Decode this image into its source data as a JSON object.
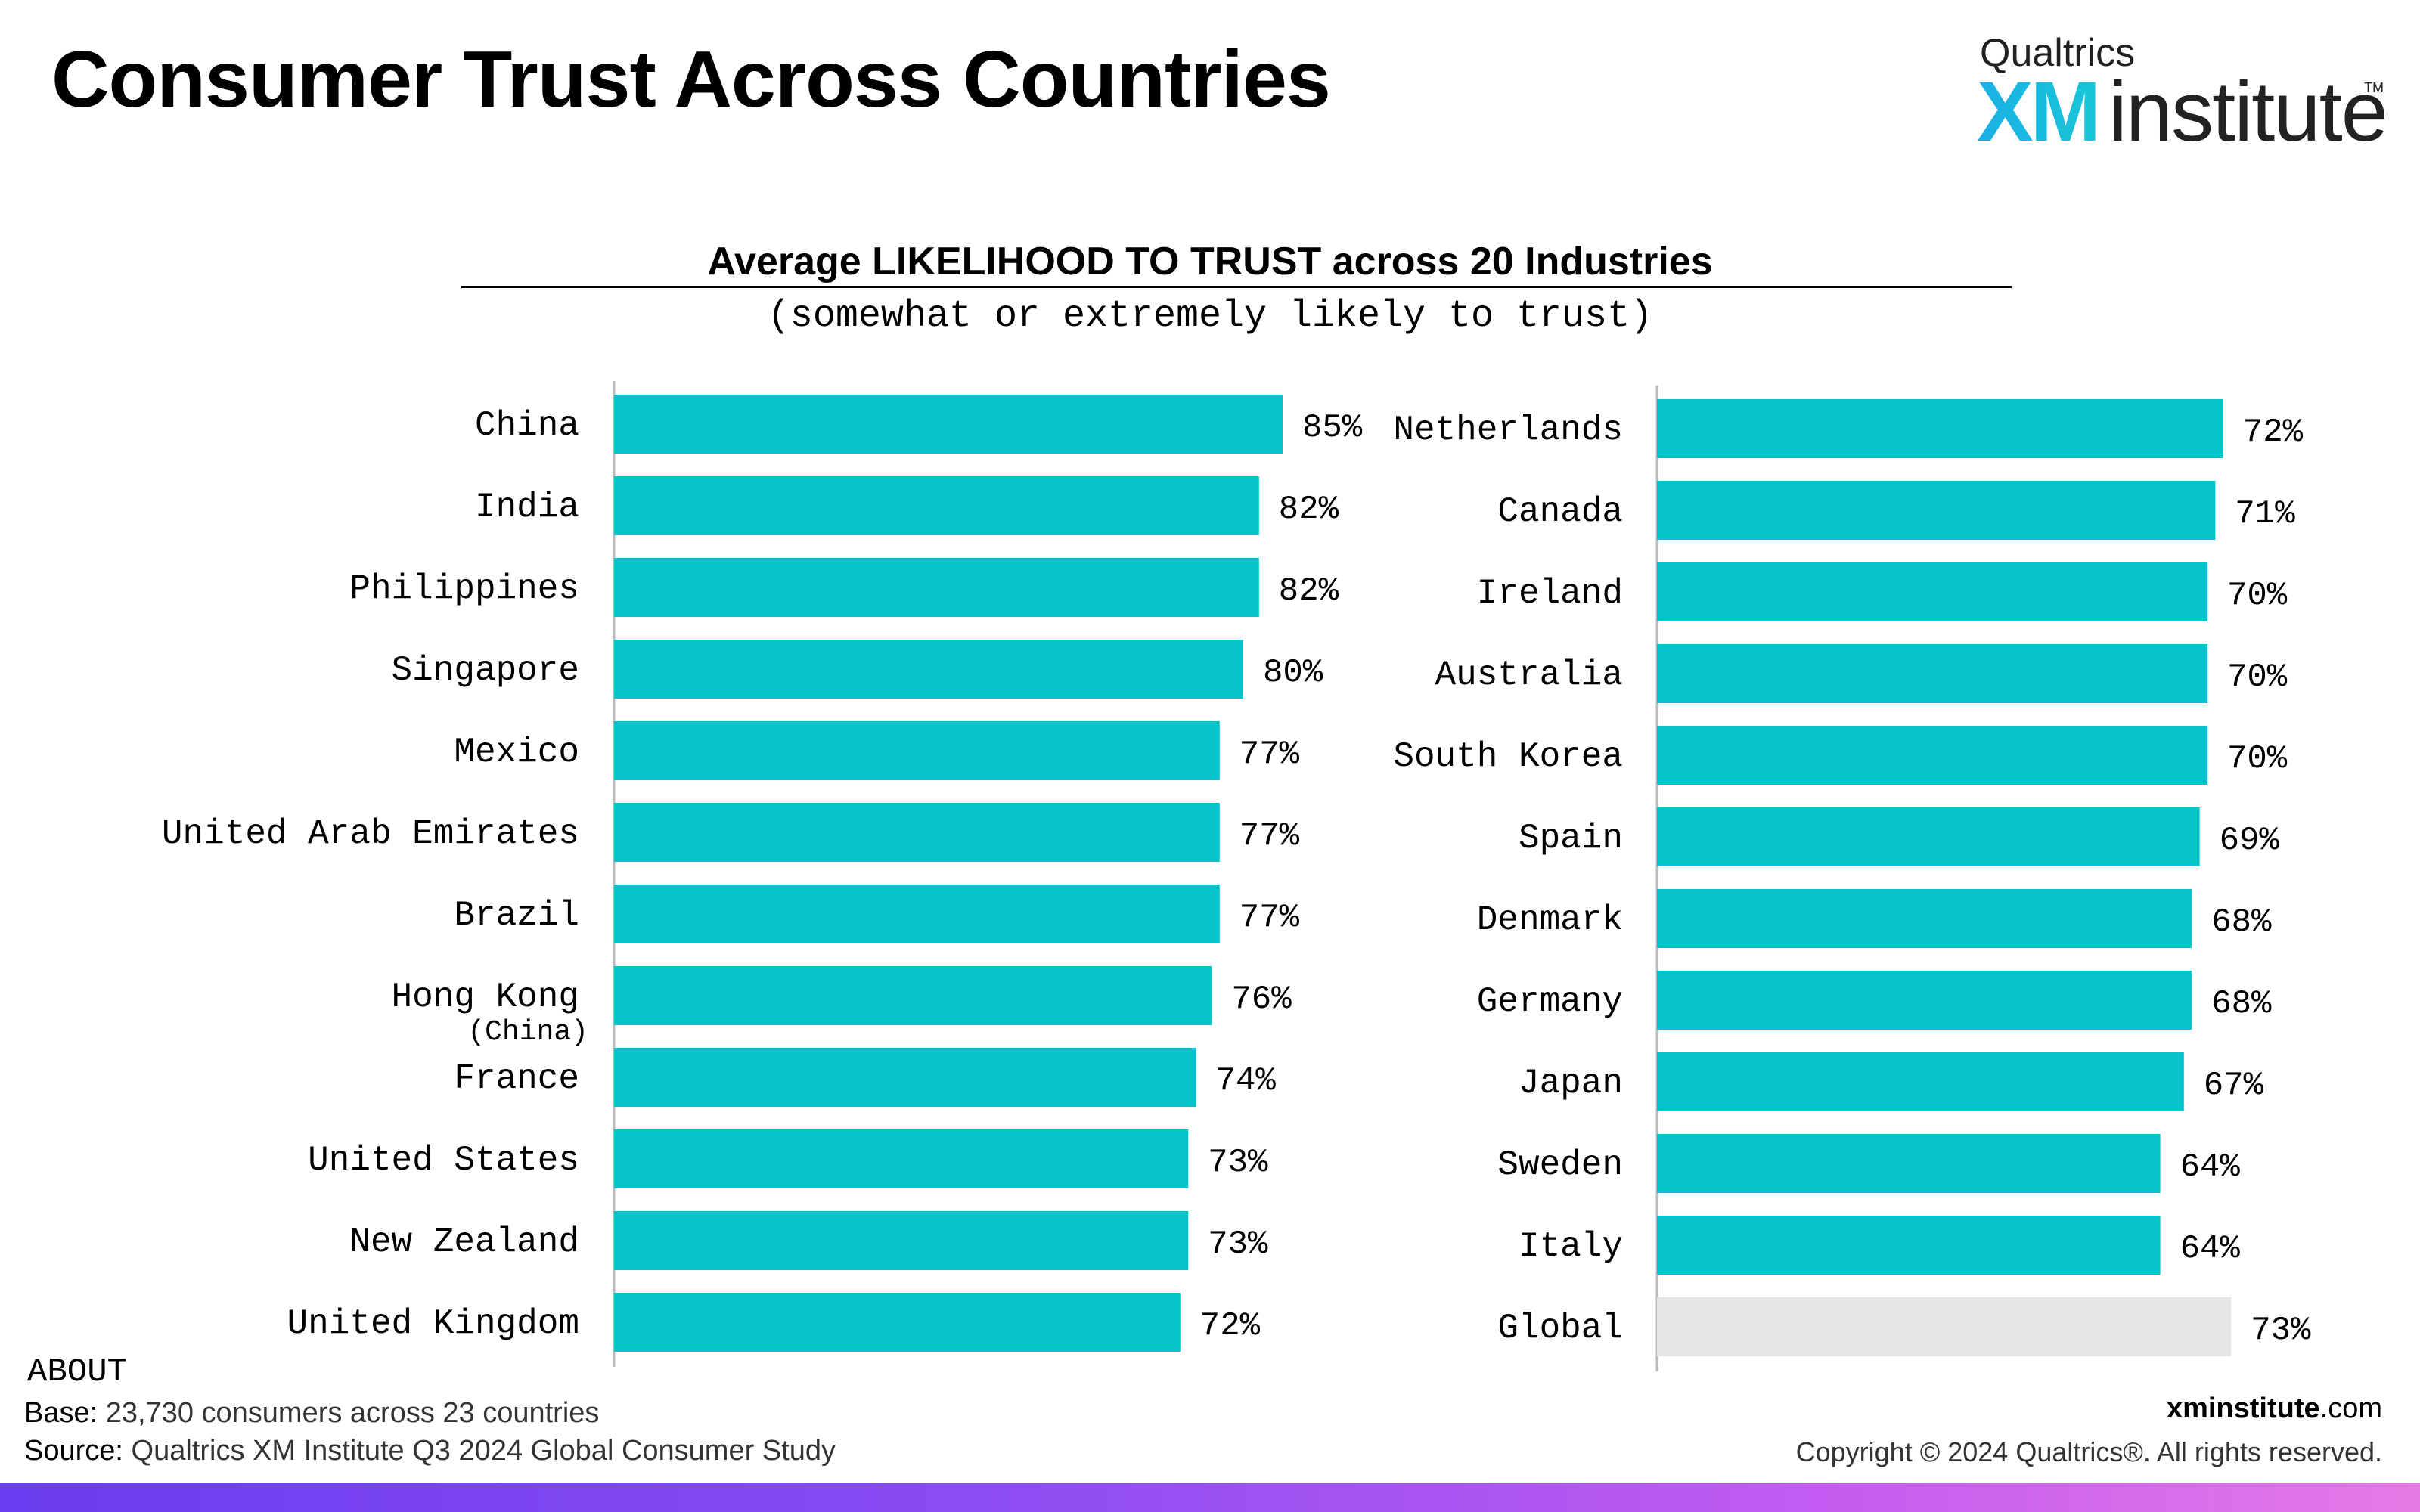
{
  "header": {
    "title": "Consumer Trust Across Countries"
  },
  "logo": {
    "brand": "Qualtrics",
    "xm": "XM",
    "institute": "institute",
    "tm": "TM"
  },
  "chart_data": {
    "type": "bar",
    "orientation": "horizontal",
    "title": "Average LIKELIHOOD TO TRUST across 20 Industries",
    "subtitle": "(somewhat or extremely likely to trust)",
    "unit": "%",
    "xlim": [
      0,
      100
    ],
    "grid": false,
    "colors": {
      "bar": "#05c3cb",
      "reference_bar": "#e6e6e6",
      "axis": "#bbbbbb"
    },
    "panels": [
      {
        "categories": [
          "China",
          "India",
          "Philippines",
          "Singapore",
          "Mexico",
          "United Arab Emirates",
          "Brazil",
          "Hong Kong",
          "France",
          "United States",
          "New Zealand",
          "United Kingdom"
        ],
        "sublabels": [
          "",
          "",
          "",
          "",
          "",
          "",
          "",
          "(China)",
          "",
          "",
          "",
          ""
        ],
        "values": [
          85,
          82,
          82,
          80,
          77,
          77,
          77,
          76,
          74,
          73,
          73,
          72
        ],
        "data_labels": [
          "85%",
          "82%",
          "82%",
          "80%",
          "77%",
          "77%",
          "77%",
          "76%",
          "74%",
          "73%",
          "73%",
          "72%"
        ]
      },
      {
        "categories": [
          "Netherlands",
          "Canada",
          "Ireland",
          "Australia",
          "South Korea",
          "Spain",
          "Denmark",
          "Germany",
          "Japan",
          "Sweden",
          "Italy",
          "Global"
        ],
        "sublabels": [
          "",
          "",
          "",
          "",
          "",
          "",
          "",
          "",
          "",
          "",
          "",
          ""
        ],
        "values": [
          72,
          71,
          70,
          70,
          70,
          69,
          68,
          68,
          67,
          64,
          64,
          73
        ],
        "data_labels": [
          "72%",
          "71%",
          "70%",
          "70%",
          "70%",
          "69%",
          "68%",
          "68%",
          "67%",
          "64%",
          "64%",
          "73%"
        ],
        "reference_category": "Global"
      }
    ]
  },
  "footer": {
    "about_heading": "ABOUT",
    "base_label": "Base:",
    "base_text": "23,730 consumers across 23 countries",
    "source_label": "Source:",
    "source_text": "Qualtrics XM Institute Q3 2024 Global Consumer Study",
    "site_bold": "xminstitute",
    "site_rest": ".com",
    "copyright": "Copyright © 2024 Qualtrics®. All rights reserved."
  }
}
